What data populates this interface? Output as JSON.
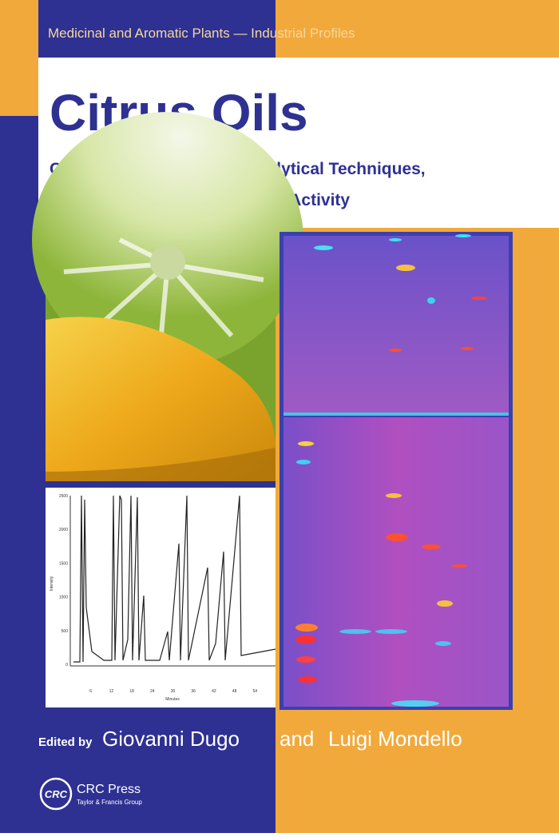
{
  "series_banner": "Medicinal and Aromatic Plants — Industrial Profiles",
  "title": "Citrus Oils",
  "subtitle": [
    "Composition, Advanced Analytical Techniques,",
    "Contaminants, and Biological Activity"
  ],
  "chromatogram": {
    "y_labels": [
      "2500",
      "2000",
      "1500",
      "1000",
      "500",
      "0"
    ],
    "x_labels": [
      "6",
      "12",
      "18",
      "24",
      "30",
      "36",
      "42",
      "48",
      "54"
    ],
    "y_title": "Intensity",
    "x_title": "Minutes"
  },
  "editors": {
    "prefix": "Edited by",
    "first": "Giovanni Dugo",
    "joiner": "and",
    "second": "Luigi Mondello"
  },
  "publisher": {
    "logo": "CRC",
    "name": "CRC Press",
    "group": "Taylor & Francis Group"
  }
}
